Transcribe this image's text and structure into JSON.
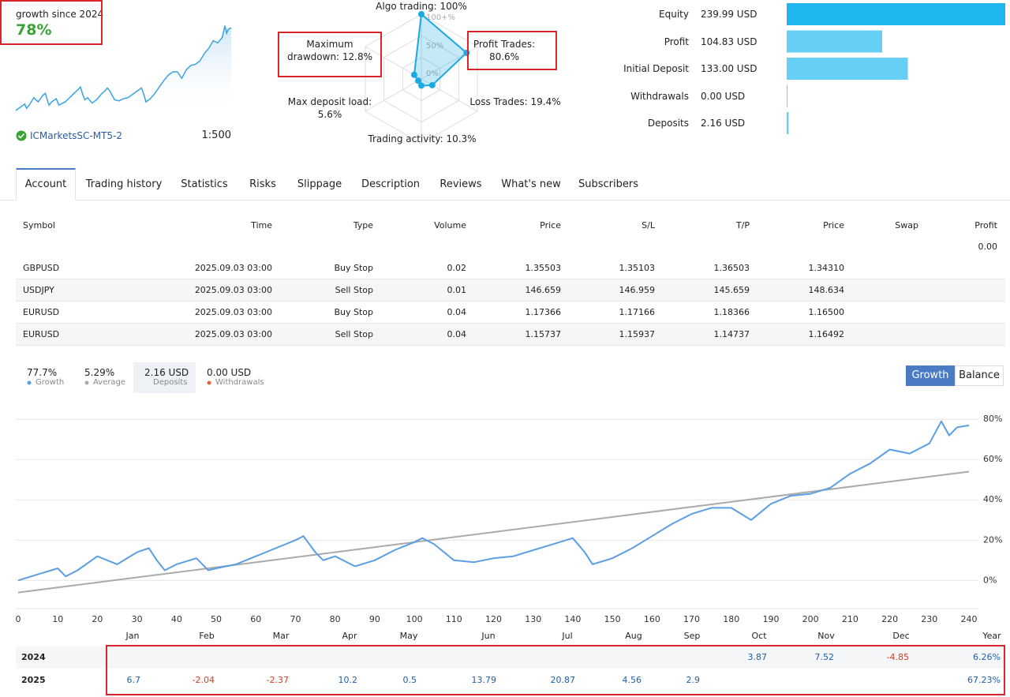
{
  "header": {
    "title": "growth since 2024",
    "growth": "78%",
    "broker": "ICMarketsSC-MT5-2",
    "leverage": "1:500"
  },
  "radar": {
    "ring_labels": [
      "100+%",
      "50%",
      "0%"
    ],
    "color": "#1ba9e1",
    "axes": [
      {
        "label": "Algo trading: 100%",
        "value": 100
      },
      {
        "label": "Profit Trades: 80.6%",
        "value": 80.6
      },
      {
        "label": "Loss Trades: 19.4%",
        "value": 19.4
      },
      {
        "label": "Trading activity: 10.3%",
        "value": 10.3
      },
      {
        "label": "Max deposit load: 5.6%",
        "value": 5.6
      },
      {
        "label": "Maximum drawdown: 12.8%",
        "value": 12.8
      }
    ]
  },
  "stats": [
    {
      "label": "Equity",
      "value": 239.99,
      "value_label": "239.99 USD",
      "color": "#1fb6f0"
    },
    {
      "label": "Profit",
      "value": 104.83,
      "value_label": "104.83 USD",
      "color": "#66cff5"
    },
    {
      "label": "Initial Deposit",
      "value": 133.0,
      "value_label": "133.00 USD",
      "color": "#66cff5"
    },
    {
      "label": "Withdrawals",
      "value": 0.0,
      "value_label": "0.00 USD",
      "color": "#66cff5"
    },
    {
      "label": "Deposits",
      "value": 2.16,
      "value_label": "2.16 USD",
      "color": "#66cff5"
    }
  ],
  "tabs": {
    "items": [
      "Account",
      "Trading history",
      "Statistics",
      "Risks",
      "Slippage",
      "Description",
      "Reviews",
      "What's new",
      "Subscribers"
    ],
    "active": 0
  },
  "orders": {
    "columns": [
      "Symbol",
      "Time",
      "Type",
      "Volume",
      "Price",
      "S/L",
      "T/P",
      "Price",
      "Swap",
      "Profit"
    ],
    "profit_total": "0.00",
    "rows": [
      [
        "GBPUSD",
        "2025.09.03 03:00",
        "Buy Stop",
        "0.02",
        "1.35503",
        "1.35103",
        "1.36503",
        "1.34310"
      ],
      [
        "USDJPY",
        "2025.09.03 03:00",
        "Sell Stop",
        "0.01",
        "146.659",
        "146.959",
        "145.659",
        "148.634"
      ],
      [
        "EURUSD",
        "2025.09.03 03:00",
        "Buy Stop",
        "0.04",
        "1.17366",
        "1.17166",
        "1.18366",
        "1.16500"
      ],
      [
        "EURUSD",
        "2025.09.03 03:00",
        "Sell Stop",
        "0.04",
        "1.15737",
        "1.15937",
        "1.14737",
        "1.16492"
      ]
    ]
  },
  "summary": [
    {
      "value": "77.7%",
      "label": "Growth",
      "color": "#5aa0e8"
    },
    {
      "value": "5.29%",
      "label": "Average",
      "color": "#aaaaaa"
    },
    {
      "value": "2.16 USD",
      "label": "Deposits",
      "color": "#4caf50"
    },
    {
      "value": "0.00 USD",
      "label": "Withdrawals",
      "color": "#e8603c"
    }
  ],
  "summary_active": 2,
  "buttons": {
    "items": [
      "Growth",
      "Balance"
    ],
    "active": 0
  },
  "chart_data": {
    "type": "line",
    "xlim": [
      0,
      240
    ],
    "xticks": [
      0,
      10,
      20,
      30,
      40,
      50,
      60,
      70,
      80,
      90,
      100,
      110,
      120,
      130,
      140,
      150,
      160,
      170,
      180,
      190,
      200,
      210,
      220,
      230,
      240
    ],
    "ylim": [
      -14,
      84
    ],
    "yticks": [
      {
        "value": 0,
        "label": "0%"
      },
      {
        "value": 20,
        "label": "20%"
      },
      {
        "value": 40,
        "label": "40%"
      },
      {
        "value": 60,
        "label": "60%"
      },
      {
        "value": 80,
        "label": "80%"
      }
    ],
    "grid": true,
    "series": [
      {
        "name": "Growth",
        "color": "#5b9ee6",
        "x": [
          0,
          5,
          10,
          12,
          15,
          20,
          25,
          30,
          33,
          35,
          37,
          40,
          45,
          48,
          50,
          55,
          60,
          65,
          70,
          72,
          75,
          77,
          80,
          85,
          90,
          95,
          100,
          102,
          105,
          110,
          115,
          120,
          125,
          130,
          135,
          140,
          143,
          145,
          150,
          155,
          160,
          165,
          170,
          175,
          180,
          185,
          190,
          195,
          200,
          205,
          210,
          215,
          220,
          225,
          230,
          233,
          235,
          237,
          240
        ],
        "values": [
          0,
          3,
          6,
          2,
          5,
          12,
          8,
          14,
          16,
          10,
          5,
          8,
          11,
          5,
          6,
          8,
          12,
          16,
          20,
          22,
          14,
          10,
          12,
          7,
          10,
          15,
          19,
          21,
          18,
          10,
          9,
          11,
          12,
          15,
          18,
          21,
          14,
          8,
          11,
          16,
          22,
          28,
          33,
          36,
          36,
          30,
          38,
          42,
          43,
          46,
          53,
          58,
          65,
          63,
          68,
          79,
          72,
          76,
          77
        ]
      },
      {
        "color": "#aaaaaa",
        "x": [
          0,
          240
        ],
        "values": [
          -6,
          54
        ]
      }
    ]
  },
  "yearly": {
    "months": [
      "Jan",
      "Feb",
      "Mar",
      "Apr",
      "May",
      "Jun",
      "Jul",
      "Aug",
      "Sep",
      "Oct",
      "Nov",
      "Dec",
      "Year"
    ],
    "positive_color": "#1f5fa8",
    "negative_color": "#d04020",
    "rows": [
      {
        "year": "2024",
        "cells": [
          null,
          null,
          null,
          null,
          null,
          null,
          null,
          null,
          null,
          "3.87",
          "7.52",
          "-4.85",
          "6.26%"
        ]
      },
      {
        "year": "2025",
        "cells": [
          "6.7",
          "-2.04",
          "-2.37",
          "10.2",
          "0.5",
          "13.79",
          "20.87",
          "4.56",
          "2.9",
          null,
          null,
          null,
          "67.23%"
        ]
      }
    ]
  }
}
